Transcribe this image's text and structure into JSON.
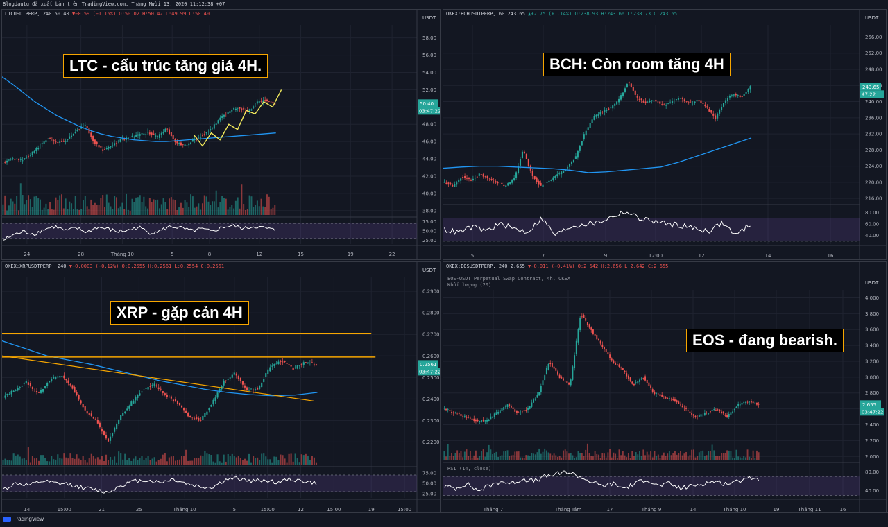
{
  "header": {
    "publish_line": "Blogdautu đã xuất bản trên TradingView.com, Tháng Mười 13, 2020 11:12:38 +07"
  },
  "footer": {
    "brand": "TradingView"
  },
  "colors": {
    "bg": "#131722",
    "grid": "#1f2330",
    "up": "#26a69a",
    "down": "#ef5350",
    "ma": "#2196f3",
    "annot_border": "#f7a600",
    "rsi": "#ffffff",
    "rsi_band": "#7e57c2",
    "fib": "#f2ea5c",
    "level": "#f7a600"
  },
  "charts": [
    {
      "id": "ltc",
      "ticker": "LTCUSDTPERP, 240",
      "last": "50.40",
      "change": "−0.59 (−1.16%)",
      "ohlc": "O:50.02 H:50.42 L:49.99 C:50.40",
      "annotation": "LTC - cấu trúc tăng giá 4H.",
      "currency": "USDT",
      "price_label": "50.40",
      "countdown": "03:47:22",
      "y_ticks": [
        "58.00",
        "56.00",
        "54.00",
        "52.00",
        "50.00",
        "48.00",
        "46.00",
        "44.00",
        "42.00",
        "40.00",
        "38.00"
      ],
      "rsi_ticks": [
        "75.00",
        "50.00",
        "25.00"
      ],
      "x_ticks": [
        "24",
        "28",
        "Tháng 10",
        "5",
        "8",
        "12",
        "15",
        "19",
        "22"
      ]
    },
    {
      "id": "bch",
      "ticker": "OKEX:BCHUSDTPERP, 60",
      "last": "243.65",
      "change": "+2.75 (+1.14%)",
      "ohlc": "O:238.93 H:243.66 L:238.73 C:243.65",
      "annotation": "BCH: Còn room tăng 4H",
      "currency": "USDT",
      "price_label": "243.65",
      "countdown": "47:22",
      "y_ticks": [
        "256.00",
        "252.00",
        "248.00",
        "244.00",
        "240.00",
        "236.00",
        "232.00",
        "228.00",
        "224.00",
        "220.00",
        "216.00"
      ],
      "rsi_ticks": [
        "80.00",
        "60.00",
        "40.00"
      ],
      "x_ticks": [
        "5",
        "7",
        "9",
        "12:00",
        "12",
        "14",
        "16"
      ]
    },
    {
      "id": "xrp",
      "ticker": "OKEX:XRPUSDTPERP, 240",
      "last": "",
      "change": "−0.0003 (−0.12%)",
      "ohlc": "O:0.2555 H:0.2561 L:0.2554 C:0.2561",
      "annotation": "XRP - gặp cản 4H",
      "currency": "USDT",
      "price_label": "0.2561",
      "countdown": "03:47:22",
      "y_ticks": [
        "0.2900",
        "0.2800",
        "0.2700",
        "0.2600",
        "0.2500",
        "0.2400",
        "0.2300",
        "0.2200"
      ],
      "rsi_ticks": [
        "75.00",
        "50.00",
        "25.00"
      ],
      "x_ticks": [
        "14",
        "15:00",
        "21",
        "25",
        "Tháng 10",
        "5",
        "15:00",
        "12",
        "15:00",
        "19",
        "15:00"
      ]
    },
    {
      "id": "eos",
      "ticker": "OKEX:EOSUSDTPERP, 240",
      "last": "2.655",
      "change": "−0.011 (−0.41%)",
      "ohlc": "O:2.642 H:2.656 L:2.642 C:2.655",
      "subtitle1": "EOS-USDT Perpetual Swap Contract, 4h, OKEX",
      "subtitle2": "Khối lượng (20)",
      "rsi_label": "RSI (14, close)",
      "annotation": "EOS - đang bearish.",
      "currency": "USDT",
      "price_label": "2.655",
      "countdown": "03:47:22",
      "y_ticks": [
        "4.000",
        "3.800",
        "3.600",
        "3.400",
        "3.200",
        "3.000",
        "2.800",
        "2.600",
        "2.400",
        "2.200",
        "2.000"
      ],
      "rsi_ticks": [
        "80.00",
        "40.00"
      ],
      "x_ticks": [
        "Tháng 7",
        "Tháng Tám",
        "17",
        "Tháng 9",
        "14",
        "Tháng 10",
        "19",
        "Tháng 11",
        "16"
      ]
    }
  ],
  "chart_data": [
    {
      "type": "line",
      "title": "LTC - cấu trúc tăng giá 4H.",
      "ylim": [
        37.5,
        59.5
      ],
      "series": [
        {
          "values": [
            43.5,
            44.0,
            43.8,
            44.5,
            45.5,
            46.5,
            45.8,
            46.2,
            47.2,
            48.0,
            46.0,
            45.0,
            45.6,
            46.2,
            46.5,
            46.8,
            47.0,
            46.5,
            47.5,
            46.0,
            45.5,
            46.2,
            46.8,
            47.5,
            48.8,
            49.5,
            50.0,
            49.4,
            50.5,
            50.8,
            50.4
          ]
        }
      ],
      "ma": [
        53.5,
        52.6,
        51.6,
        50.6,
        49.8,
        49.0,
        48.4,
        47.8,
        47.3,
        46.9,
        46.6,
        46.4,
        46.2,
        46.1,
        46.0,
        46.0,
        46.1,
        46.2,
        46.3,
        46.4,
        46.5,
        46.6,
        46.7,
        46.8,
        46.9,
        47.0
      ],
      "rsi_ylim": [
        15,
        85
      ],
      "rsi": [
        25,
        40,
        48,
        42,
        55,
        62,
        50,
        58,
        46,
        60,
        55,
        48,
        52,
        60,
        45,
        50,
        62,
        58,
        50,
        55,
        48,
        60,
        64,
        56,
        62,
        58,
        52
      ]
    },
    {
      "type": "line",
      "title": "BCH: Còn room tăng 4H",
      "ylim": [
        215,
        259
      ],
      "series": [
        {
          "values": [
            220.0,
            219.0,
            221.5,
            220.5,
            222.0,
            221.0,
            220.0,
            219.0,
            221.0,
            228.0,
            222.0,
            219.0,
            220.5,
            222.0,
            223.5,
            226.0,
            232.0,
            236.0,
            237.5,
            238.5,
            240.5,
            245.0,
            241.0,
            239.5,
            240.5,
            239.0,
            240.0,
            241.0,
            239.5,
            240.5,
            238.5,
            236.0,
            240.0,
            242.0,
            241.0,
            243.65
          ]
        }
      ],
      "ma": [
        223.5,
        223.8,
        224.0,
        224.0,
        223.8,
        223.6,
        223.4,
        223.0,
        222.4,
        222.6,
        223.0,
        223.4,
        223.8,
        225.0,
        226.5,
        228.0,
        229.5,
        231.0
      ],
      "rsi_ylim": [
        25,
        90
      ],
      "rsi": [
        50,
        45,
        55,
        48,
        60,
        52,
        46,
        70,
        40,
        55,
        60,
        62,
        72,
        82,
        70,
        65,
        60,
        58,
        52,
        48,
        62,
        40,
        60
      ]
    },
    {
      "type": "line",
      "title": "XRP - gặp cản 4H",
      "ylim": [
        0.2095,
        0.2965
      ],
      "series": [
        {
          "values": [
            0.241,
            0.244,
            0.248,
            0.242,
            0.249,
            0.251,
            0.245,
            0.235,
            0.23,
            0.22,
            0.231,
            0.238,
            0.244,
            0.247,
            0.242,
            0.238,
            0.232,
            0.23,
            0.238,
            0.248,
            0.252,
            0.244,
            0.245,
            0.255,
            0.258,
            0.254,
            0.257,
            0.2561
          ]
        }
      ],
      "ma": [
        0.267,
        0.2635,
        0.26,
        0.258,
        0.256,
        0.2535,
        0.251,
        0.2485,
        0.2465,
        0.2445,
        0.243,
        0.242,
        0.2415,
        0.2418,
        0.243
      ],
      "resistance": [
        0.2705,
        0.2595
      ],
      "trendline": [
        [
          0,
          0.26
        ],
        [
          1,
          0.239
        ]
      ],
      "rsi_ylim": [
        15,
        85
      ],
      "rsi": [
        35,
        50,
        45,
        55,
        50,
        48,
        40,
        35,
        28,
        45,
        55,
        58,
        52,
        60,
        50,
        42,
        40,
        58,
        62,
        55,
        58,
        52,
        60,
        55,
        50
      ]
    },
    {
      "type": "line",
      "title": "EOS - đang bearish.",
      "ylim": [
        1.95,
        4.1
      ],
      "series": [
        {
          "values": [
            2.6,
            2.55,
            2.5,
            2.45,
            2.45,
            2.55,
            2.65,
            2.55,
            2.6,
            2.8,
            3.2,
            3.0,
            2.9,
            3.8,
            3.6,
            3.4,
            3.2,
            3.1,
            2.9,
            3.0,
            2.8,
            2.75,
            2.7,
            2.6,
            2.5,
            2.55,
            2.6,
            2.5,
            2.65,
            2.7,
            2.655
          ]
        }
      ],
      "rsi_ylim": [
        25,
        95
      ],
      "rsi": [
        50,
        45,
        55,
        40,
        50,
        60,
        55,
        65,
        60,
        70,
        75,
        80,
        70,
        60,
        50,
        55,
        45,
        55,
        65,
        50,
        55,
        45,
        50,
        55,
        60,
        55,
        58,
        70,
        60
      ]
    }
  ]
}
